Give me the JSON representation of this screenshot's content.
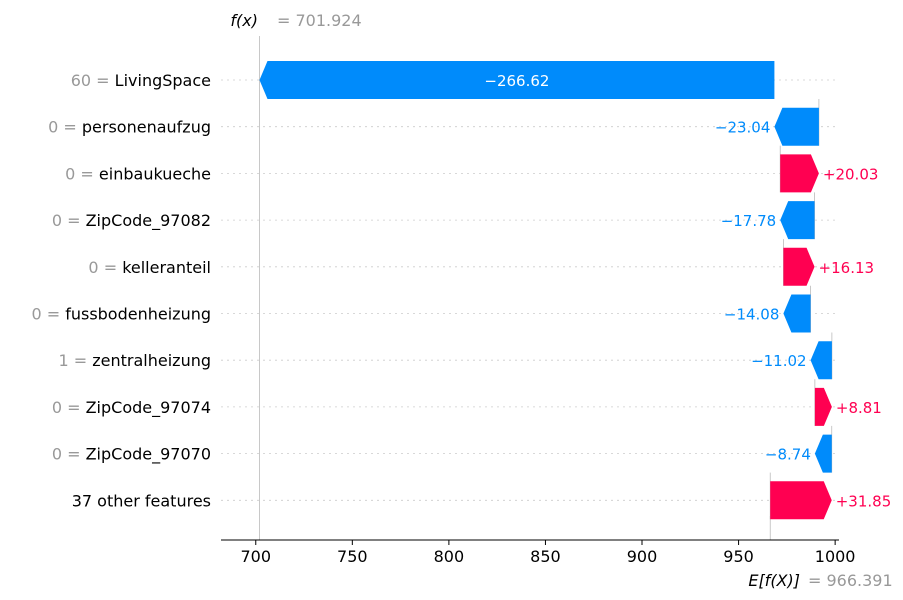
{
  "chart_data": {
    "type": "waterfall",
    "fx_label": "f(x)",
    "fx_value": "701.924",
    "fx_number": 701.924,
    "ex_label": "E[f(X)]",
    "ex_value": "966.391",
    "ex_number": 966.391,
    "xlim": [
      682,
      1002
    ],
    "xticks": [
      700,
      750,
      800,
      850,
      900,
      950,
      1000
    ],
    "colors": {
      "positive": "#ff0051",
      "negative": "#008bfb",
      "muted": "#999999"
    },
    "rows": [
      {
        "value": "60",
        "feature": "LivingSpace",
        "contribution": -266.62,
        "label": "−266.62"
      },
      {
        "value": "0",
        "feature": "personenaufzug",
        "contribution": -23.04,
        "label": "−23.04"
      },
      {
        "value": "0",
        "feature": "einbaukueche",
        "contribution": 20.03,
        "label": "+20.03"
      },
      {
        "value": "0",
        "feature": "ZipCode_97082",
        "contribution": -17.78,
        "label": "−17.78"
      },
      {
        "value": "0",
        "feature": "kelleranteil",
        "contribution": 16.13,
        "label": "+16.13"
      },
      {
        "value": "0",
        "feature": "fussbodenheizung",
        "contribution": -14.08,
        "label": "−14.08"
      },
      {
        "value": "1",
        "feature": "zentralheizung",
        "contribution": -11.02,
        "label": "−11.02"
      },
      {
        "value": "0",
        "feature": "ZipCode_97074",
        "contribution": 8.81,
        "label": "+8.81"
      },
      {
        "value": "0",
        "feature": "ZipCode_97070",
        "contribution": -8.74,
        "label": "−8.74"
      },
      {
        "value": "",
        "feature": "37 other features",
        "contribution": 31.85,
        "label": "+31.85"
      }
    ]
  }
}
